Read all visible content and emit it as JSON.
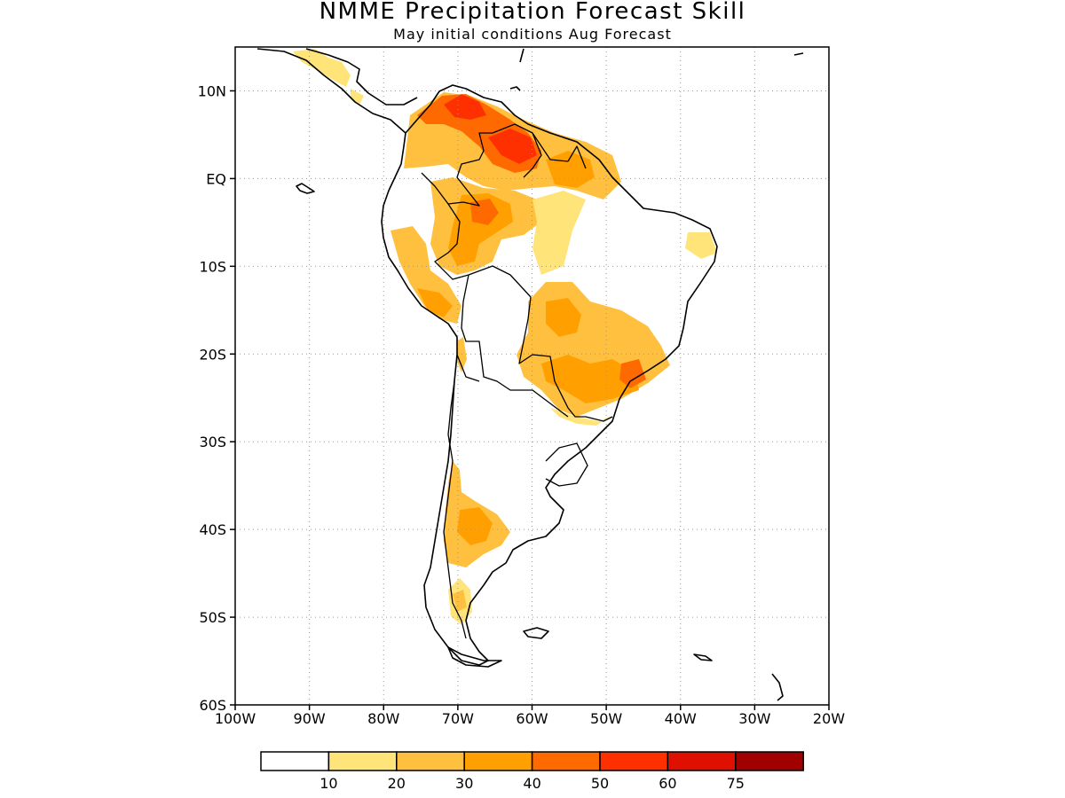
{
  "title": "NMME Precipitation Forecast Skill",
  "subtitle": "May initial conditions  Aug Forecast",
  "map": {
    "lon_range": [
      -100,
      -20
    ],
    "lat_range": [
      -60,
      15
    ],
    "lon_ticks": [
      {
        "lon": -100,
        "label": "100W"
      },
      {
        "lon": -90,
        "label": "90W"
      },
      {
        "lon": -80,
        "label": "80W"
      },
      {
        "lon": -70,
        "label": "70W"
      },
      {
        "lon": -60,
        "label": "60W"
      },
      {
        "lon": -50,
        "label": "50W"
      },
      {
        "lon": -40,
        "label": "40W"
      },
      {
        "lon": -30,
        "label": "30W"
      },
      {
        "lon": -20,
        "label": "20W"
      }
    ],
    "lat_ticks": [
      {
        "lat": 10,
        "label": "10N"
      },
      {
        "lat": 0,
        "label": "EQ"
      },
      {
        "lat": -10,
        "label": "10S"
      },
      {
        "lat": -20,
        "label": "20S"
      },
      {
        "lat": -30,
        "label": "30S"
      },
      {
        "lat": -40,
        "label": "40S"
      },
      {
        "lat": -50,
        "label": "50S"
      },
      {
        "lat": -60,
        "label": "60S"
      }
    ],
    "grid": true,
    "colorbar": {
      "labels": [
        "10",
        "20",
        "30",
        "40",
        "50",
        "60",
        "75"
      ],
      "colors": [
        "#ffffff",
        "#ffe47a",
        "#ffc040",
        "#ffa000",
        "#ff6a00",
        "#ff3000",
        "#e01000",
        "#a00000"
      ]
    }
  }
}
